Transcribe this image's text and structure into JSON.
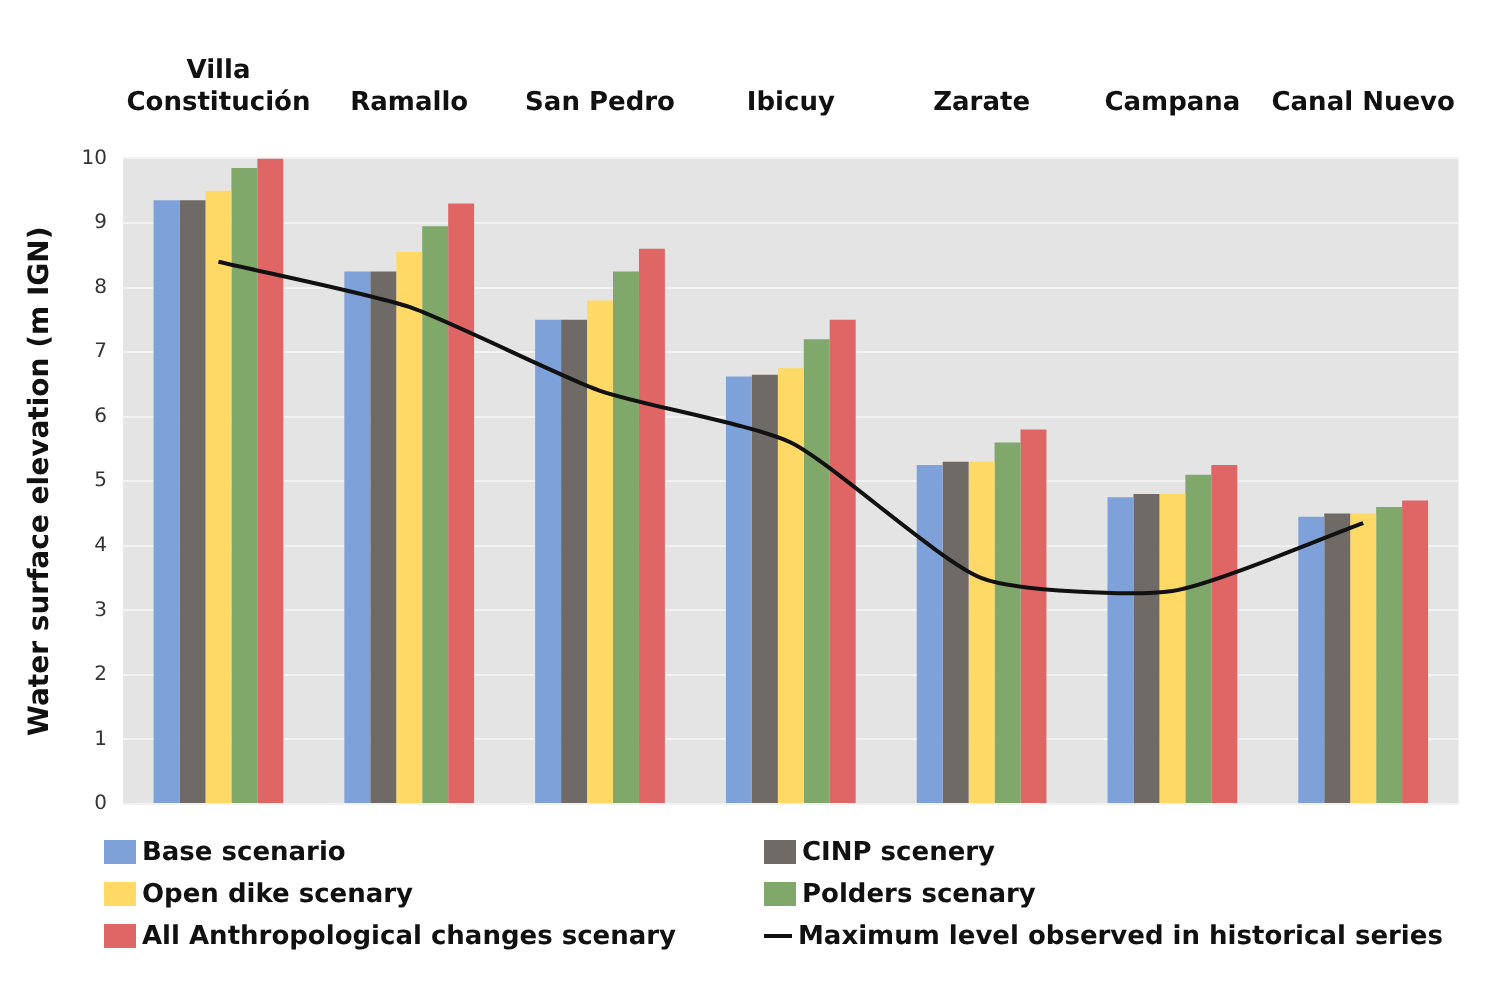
{
  "chart_data": {
    "type": "bar",
    "categories": [
      "Villa\nConstitución",
      "Ramallo",
      "San Pedro",
      "Ibicuy",
      "Zarate",
      "Campana",
      "Canal Nuevo"
    ],
    "ylabel": "Water surface elevation (m IGN)",
    "ylim": [
      0,
      10
    ],
    "yticks": [
      0,
      1,
      2,
      3,
      4,
      5,
      6,
      7,
      8,
      9,
      10
    ],
    "grid": "y",
    "legend": "bottom",
    "series": [
      {
        "name": "Base scenario",
        "color": "#7ea1d9",
        "values": [
          9.35,
          8.25,
          7.5,
          6.62,
          5.25,
          4.75,
          4.45
        ]
      },
      {
        "name": "CINP scenery",
        "color": "#6f6a66",
        "values": [
          9.35,
          8.25,
          7.5,
          6.65,
          5.3,
          4.8,
          4.5
        ]
      },
      {
        "name": "Open dike scenary",
        "color": "#ffd966",
        "values": [
          9.5,
          8.55,
          7.8,
          6.75,
          5.3,
          4.8,
          4.5
        ]
      },
      {
        "name": "Polders scenary",
        "color": "#7fa86a",
        "values": [
          9.85,
          8.95,
          8.25,
          7.2,
          5.6,
          5.1,
          4.6
        ]
      },
      {
        "name": "All Anthropological changes scenary",
        "color": "#e06666",
        "values": [
          10.0,
          9.3,
          8.6,
          7.5,
          5.8,
          5.25,
          4.7
        ]
      },
      {
        "name": "Maximum level observed in historical series",
        "type": "line",
        "color": "#111111",
        "values": [
          8.4,
          7.7,
          6.4,
          5.6,
          3.5,
          3.3,
          4.35
        ]
      }
    ]
  }
}
